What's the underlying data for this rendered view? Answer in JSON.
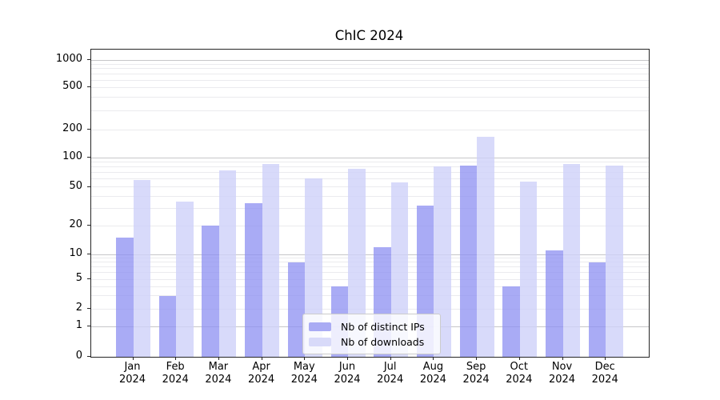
{
  "chart_data": {
    "type": "bar",
    "title": "ChIC 2024",
    "categories": [
      "Jan 2024",
      "Feb 2024",
      "Mar 2024",
      "Apr 2024",
      "May 2024",
      "Jun 2024",
      "Jul 2024",
      "Aug 2024",
      "Sep 2024",
      "Oct 2024",
      "Nov 2024",
      "Dec 2024"
    ],
    "series": [
      {
        "name": "Nb of distinct IPs",
        "values": [
          15,
          3,
          20,
          34,
          8,
          4,
          12,
          32,
          83,
          4,
          11,
          8
        ],
        "color": "#a9abf4",
        "fill": "rgba(140,143,242,0.75)"
      },
      {
        "name": "Nb of downloads",
        "values": [
          59,
          35,
          74,
          86,
          61,
          77,
          55,
          81,
          167,
          57,
          86,
          82
        ],
        "color": "#d8daf9",
        "fill": "rgba(206,209,249,0.8)"
      }
    ],
    "yscale": "symlog-like",
    "ylim": [
      0,
      1000
    ],
    "ytick_labels": [
      "0",
      "1",
      "2",
      "5",
      "10",
      "20",
      "50",
      "100",
      "200",
      "500",
      "1000"
    ],
    "y_anchors": [
      [
        0,
        384
      ],
      [
        1,
        346
      ],
      [
        2,
        324
      ],
      [
        5,
        287
      ],
      [
        10,
        256
      ],
      [
        20,
        220
      ],
      [
        50,
        171.5
      ],
      [
        100,
        135
      ],
      [
        200,
        100
      ],
      [
        500,
        47
      ],
      [
        1000,
        13
      ]
    ],
    "minor_grid_values": [
      2,
      3,
      4,
      5,
      6,
      7,
      8,
      9,
      20,
      30,
      40,
      50,
      60,
      70,
      80,
      90,
      200,
      300,
      400,
      500,
      600,
      700,
      800,
      900
    ],
    "major_grid_values": [
      1,
      10,
      100,
      1000
    ],
    "grid": true,
    "legend_position": "lower center",
    "colors": {
      "axis": "#262626",
      "grid_major": "#c6c6c9",
      "grid_minor": "#ebebee",
      "legend_border": "#cccccc"
    }
  }
}
